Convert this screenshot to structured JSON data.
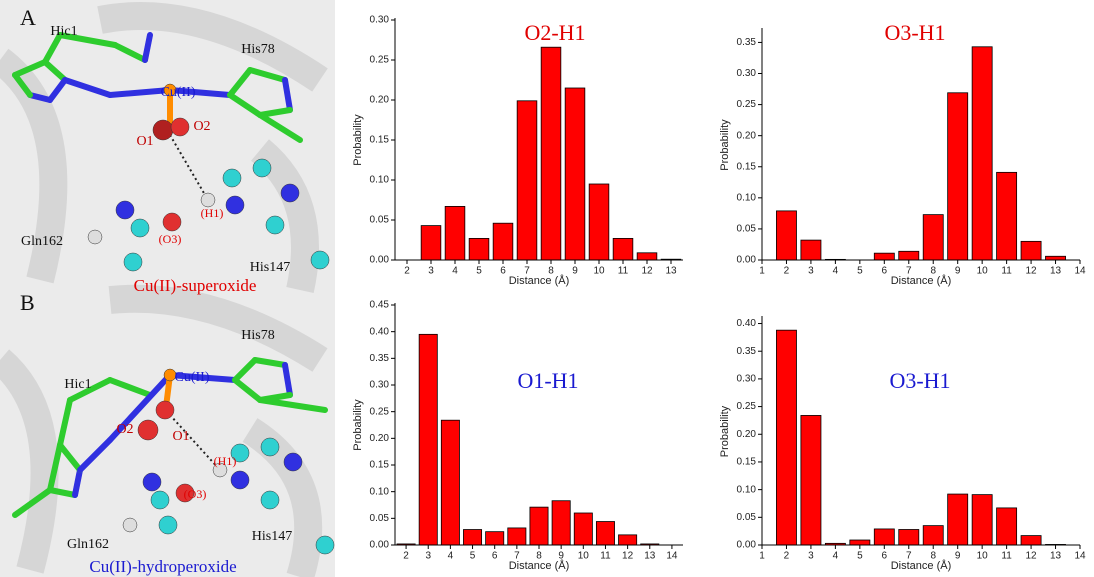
{
  "panels": [
    {
      "letter": "A",
      "caption": "Cu(II)-superoxide",
      "labels": [
        "Hic1",
        "Cu(II)",
        "His78",
        "O1",
        "O2",
        "(H1)",
        "(O3)",
        "Gln162",
        "His147"
      ]
    },
    {
      "letter": "B",
      "caption": "Cu(II)-hydroperoxide",
      "labels": [
        "Hic1",
        "Cu(II)",
        "His78",
        "O2",
        "O1",
        "(H1)",
        "(O3)",
        "Gln162",
        "His147"
      ]
    }
  ],
  "chart_data": [
    {
      "type": "bar",
      "title": "O2-H1",
      "title_color": "#e00000",
      "color": "#ff0000",
      "xlabel": "Distance (Å)",
      "ylabel": "Probability",
      "x": [
        2,
        3,
        4,
        5,
        6,
        7,
        8,
        9,
        10,
        11,
        12,
        13
      ],
      "values": [
        0,
        0.043,
        0.067,
        0.027,
        0.046,
        0.199,
        0.266,
        0.215,
        0.095,
        0.027,
        0.009,
        0.001
      ],
      "xlim": [
        1.5,
        13.5
      ],
      "xticks": [
        2,
        3,
        4,
        5,
        6,
        7,
        8,
        9,
        10,
        11,
        12,
        13
      ],
      "ylim": [
        0,
        0.3
      ],
      "yticks": [
        {
          "value": 0,
          "label": "0.00"
        },
        {
          "value": 0.05,
          "label": "0.05"
        },
        {
          "value": 0.1,
          "label": "0.10"
        },
        {
          "value": 0.15,
          "label": "0.15"
        },
        {
          "value": 0.2,
          "label": "0.20"
        },
        {
          "value": 0.25,
          "label": "0.25"
        },
        {
          "value": 0.3,
          "label": "0.30"
        }
      ]
    },
    {
      "type": "bar",
      "title": "O3-H1",
      "title_color": "#e00000",
      "color": "#ff0000",
      "xlabel": "Distance (Å)",
      "ylabel": "Probability",
      "x": [
        2,
        3,
        4,
        5,
        6,
        7,
        8,
        9,
        10,
        11,
        12,
        13
      ],
      "values": [
        0.079,
        0.032,
        0.001,
        0,
        0.011,
        0.014,
        0.073,
        0.269,
        0.343,
        0.141,
        0.03,
        0.006
      ],
      "xlim": [
        1,
        14
      ],
      "xticks": [
        1,
        2,
        3,
        4,
        5,
        6,
        7,
        8,
        9,
        10,
        11,
        12,
        13,
        14
      ],
      "ylim": [
        0,
        0.37
      ],
      "yticks": [
        {
          "value": 0,
          "label": "0.00"
        },
        {
          "value": 0.05,
          "label": "0.05"
        },
        {
          "value": 0.1,
          "label": "0.10"
        },
        {
          "value": 0.15,
          "label": "0.15"
        },
        {
          "value": 0.2,
          "label": "0.20"
        },
        {
          "value": 0.25,
          "label": "0.25"
        },
        {
          "value": 0.3,
          "label": "0.30"
        },
        {
          "value": 0.35,
          "label": "0.35"
        }
      ]
    },
    {
      "type": "bar",
      "title": "O1-H1",
      "title_color": "#1a1ad0",
      "color": "#ff0000",
      "xlabel": "Distance (Å)",
      "ylabel": "Probability",
      "x": [
        2,
        3,
        4,
        5,
        6,
        7,
        8,
        9,
        10,
        11,
        12,
        13,
        14
      ],
      "values": [
        0.002,
        0.395,
        0.234,
        0.029,
        0.025,
        0.032,
        0.071,
        0.083,
        0.06,
        0.044,
        0.019,
        0.002,
        0
      ],
      "xlim": [
        1.5,
        14.5
      ],
      "xticks": [
        2,
        3,
        4,
        5,
        6,
        7,
        8,
        9,
        10,
        11,
        12,
        13,
        14
      ],
      "ylim": [
        0,
        0.45
      ],
      "yticks": [
        {
          "value": 0,
          "label": "0.00"
        },
        {
          "value": 0.05,
          "label": "0.05"
        },
        {
          "value": 0.1,
          "label": "0.10"
        },
        {
          "value": 0.15,
          "label": "0.15"
        },
        {
          "value": 0.2,
          "label": "0.20"
        },
        {
          "value": 0.25,
          "label": "0.25"
        },
        {
          "value": 0.3,
          "label": "0.30"
        },
        {
          "value": 0.35,
          "label": "0.35"
        },
        {
          "value": 0.4,
          "label": "0.40"
        },
        {
          "value": 0.45,
          "label": "0.45"
        }
      ]
    },
    {
      "type": "bar",
      "title": "O3-H1",
      "title_color": "#1a1ad0",
      "color": "#ff0000",
      "xlabel": "Distance (Å)",
      "ylabel": "Probability",
      "x": [
        2,
        3,
        4,
        5,
        6,
        7,
        8,
        9,
        10,
        11,
        12,
        13
      ],
      "values": [
        0.388,
        0.234,
        0.003,
        0.009,
        0.029,
        0.028,
        0.035,
        0.092,
        0.091,
        0.067,
        0.017,
        0.001
      ],
      "xlim": [
        1,
        14
      ],
      "xticks": [
        1,
        2,
        3,
        4,
        5,
        6,
        7,
        8,
        9,
        10,
        11,
        12,
        13,
        14
      ],
      "ylim": [
        0,
        0.41
      ],
      "yticks": [
        {
          "value": 0,
          "label": "0.00"
        },
        {
          "value": 0.05,
          "label": "0.05"
        },
        {
          "value": 0.1,
          "label": "0.10"
        },
        {
          "value": 0.15,
          "label": "0.15"
        },
        {
          "value": 0.2,
          "label": "0.20"
        },
        {
          "value": 0.25,
          "label": "0.25"
        },
        {
          "value": 0.3,
          "label": "0.30"
        },
        {
          "value": 0.35,
          "label": "0.35"
        },
        {
          "value": 0.4,
          "label": "0.40"
        }
      ]
    }
  ]
}
